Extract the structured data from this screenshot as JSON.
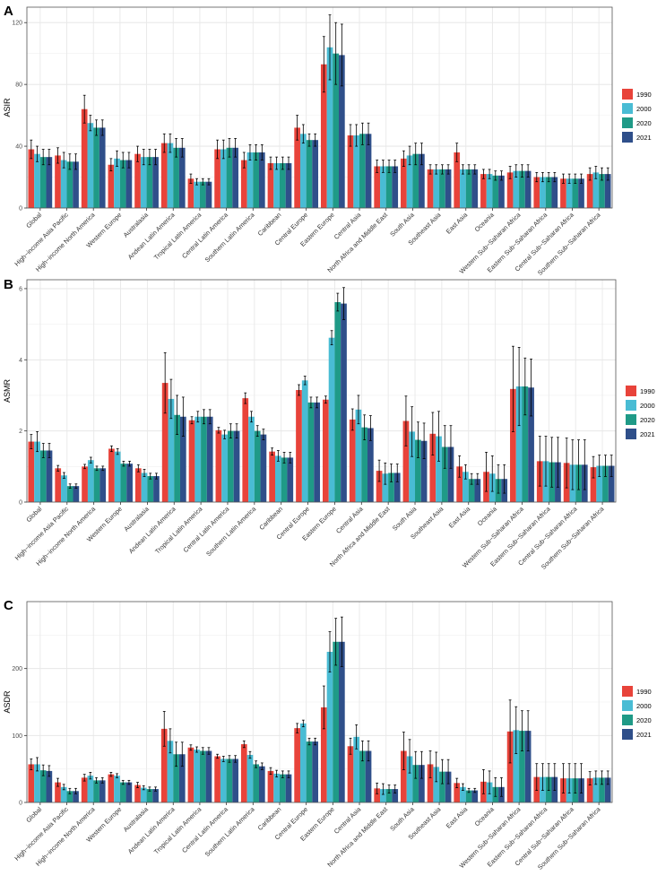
{
  "chart_data": [
    {
      "panel": "A",
      "type": "bar",
      "ylabel": "ASIR",
      "ylim": [
        0,
        130
      ],
      "yticks": [
        0,
        40,
        80,
        120
      ],
      "series_names": [
        "1990",
        "2000",
        "2020",
        "2021"
      ],
      "colors": [
        "#e8433a",
        "#49bcd4",
        "#1f9a87",
        "#2f4f8a"
      ],
      "categories": [
        "Global",
        "High−income Asia Pacific",
        "High−income North America",
        "Western Europe",
        "Australasia",
        "Andean Latin America",
        "Tropical Latin America",
        "Central Latin America",
        "Southern Latin America",
        "Caribbean",
        "Central Europe",
        "Eastern Europe",
        "Central Asia",
        "North Africa and Middle East",
        "South Asia",
        "Southeast Asia",
        "East Asia",
        "Oceania",
        "Western Sub−Saharan Africa",
        "Eastern Sub−Saharan Africa",
        "Central Sub−Saharan Africa",
        "Southern Sub−Saharan Africa"
      ],
      "values": [
        [
          38,
          35,
          33,
          33
        ],
        [
          34,
          31,
          30,
          30
        ],
        [
          64,
          55,
          52,
          52
        ],
        [
          28,
          32,
          31,
          31
        ],
        [
          35,
          33,
          33,
          33
        ],
        [
          42,
          42,
          39,
          39
        ],
        [
          19,
          17,
          17,
          17
        ],
        [
          38,
          38,
          39,
          39
        ],
        [
          31,
          36,
          36,
          36
        ],
        [
          29,
          29,
          29,
          29
        ],
        [
          52,
          48,
          44,
          44
        ],
        [
          93,
          104,
          100,
          99
        ],
        [
          47,
          47,
          48,
          48
        ],
        [
          27,
          27,
          27,
          27
        ],
        [
          32,
          34,
          35,
          35
        ],
        [
          25,
          25,
          25,
          25
        ],
        [
          36,
          25,
          25,
          25
        ],
        [
          22,
          22,
          21,
          21
        ],
        [
          23,
          24,
          24,
          24
        ],
        [
          20,
          20,
          20,
          20
        ],
        [
          19,
          19,
          19,
          19
        ],
        [
          22,
          23,
          22,
          22
        ]
      ],
      "errors": [
        [
          6,
          5,
          5,
          5
        ],
        [
          5,
          5,
          5,
          5
        ],
        [
          9,
          5,
          5,
          5
        ],
        [
          4,
          5,
          5,
          5
        ],
        [
          5,
          5,
          5,
          5
        ],
        [
          6,
          6,
          6,
          6
        ],
        [
          3,
          2,
          2,
          2
        ],
        [
          6,
          6,
          6,
          6
        ],
        [
          5,
          5,
          5,
          5
        ],
        [
          4,
          4,
          4,
          4
        ],
        [
          8,
          6,
          4,
          4
        ],
        [
          18,
          21,
          20,
          20
        ],
        [
          7,
          7,
          7,
          7
        ],
        [
          4,
          4,
          4,
          4
        ],
        [
          5,
          6,
          7,
          7
        ],
        [
          3,
          3,
          3,
          3
        ],
        [
          6,
          3,
          3,
          3
        ],
        [
          3,
          3,
          3,
          3
        ],
        [
          4,
          4,
          4,
          4
        ],
        [
          3,
          3,
          3,
          3
        ],
        [
          3,
          3,
          3,
          3
        ],
        [
          4,
          4,
          4,
          4
        ]
      ]
    },
    {
      "panel": "B",
      "type": "bar",
      "ylabel": "ASMR",
      "ylim": [
        0,
        6.25
      ],
      "yticks": [
        0,
        2,
        4,
        6
      ],
      "series_names": [
        "1990",
        "2000",
        "2020",
        "2021"
      ],
      "colors": [
        "#e8433a",
        "#49bcd4",
        "#1f9a87",
        "#2f4f8a"
      ],
      "categories": [
        "Global",
        "High−income Asia Pacific",
        "High−income North America",
        "Western Europe",
        "Australasia",
        "Andean Latin America",
        "Tropical Latin America",
        "Central Latin America",
        "Southern Latin America",
        "Caribbean",
        "Central Europe",
        "Eastern Europe",
        "Central Asia",
        "North Africa and Middle East",
        "South Asia",
        "Southeast Asia",
        "East Asia",
        "Oceania",
        "Western Sub−Saharan Africa",
        "Eastern Sub−Saharan Africa",
        "Central Sub−Saharan Africa",
        "Southern Sub−Saharan Africa"
      ],
      "values": [
        [
          1.7,
          1.7,
          1.45,
          1.45
        ],
        [
          0.95,
          0.75,
          0.45,
          0.45
        ],
        [
          1.0,
          1.18,
          0.95,
          0.95
        ],
        [
          1.5,
          1.42,
          1.08,
          1.08
        ],
        [
          0.95,
          0.82,
          0.73,
          0.73
        ],
        [
          3.35,
          2.9,
          2.45,
          2.4
        ],
        [
          2.3,
          2.4,
          2.4,
          2.4
        ],
        [
          2.02,
          1.9,
          2.0,
          2.0
        ],
        [
          2.92,
          2.4,
          2.0,
          1.9
        ],
        [
          1.42,
          1.3,
          1.25,
          1.25
        ],
        [
          3.15,
          3.42,
          2.8,
          2.8
        ],
        [
          2.88,
          4.62,
          5.62,
          5.58
        ],
        [
          2.32,
          2.6,
          2.1,
          2.08
        ],
        [
          0.88,
          0.8,
          0.82,
          0.82
        ],
        [
          2.28,
          1.98,
          1.75,
          1.72
        ],
        [
          1.92,
          1.85,
          1.55,
          1.55
        ],
        [
          1.0,
          0.85,
          0.65,
          0.65
        ],
        [
          0.85,
          0.8,
          0.65,
          0.65
        ],
        [
          3.18,
          3.25,
          3.25,
          3.22
        ],
        [
          1.15,
          1.15,
          1.12,
          1.12
        ],
        [
          1.1,
          1.05,
          1.05,
          1.05
        ],
        [
          0.98,
          1.02,
          1.02,
          1.02
        ]
      ],
      "errors": [
        [
          0.2,
          0.28,
          0.2,
          0.2
        ],
        [
          0.08,
          0.08,
          0.06,
          0.06
        ],
        [
          0.06,
          0.08,
          0.06,
          0.06
        ],
        [
          0.08,
          0.08,
          0.07,
          0.07
        ],
        [
          0.1,
          0.1,
          0.08,
          0.08
        ],
        [
          0.85,
          0.55,
          0.55,
          0.55
        ],
        [
          0.1,
          0.15,
          0.2,
          0.2
        ],
        [
          0.08,
          0.12,
          0.2,
          0.2
        ],
        [
          0.15,
          0.15,
          0.15,
          0.15
        ],
        [
          0.1,
          0.15,
          0.15,
          0.15
        ],
        [
          0.15,
          0.12,
          0.15,
          0.15
        ],
        [
          0.1,
          0.2,
          0.25,
          0.45
        ],
        [
          0.3,
          0.4,
          0.35,
          0.35
        ],
        [
          0.3,
          0.3,
          0.25,
          0.25
        ],
        [
          0.7,
          0.7,
          0.5,
          0.5
        ],
        [
          0.6,
          0.7,
          0.6,
          0.6
        ],
        [
          0.3,
          0.2,
          0.15,
          0.15
        ],
        [
          0.55,
          0.5,
          0.4,
          0.4
        ],
        [
          1.2,
          1.1,
          0.8,
          0.8
        ],
        [
          0.7,
          0.7,
          0.7,
          0.7
        ],
        [
          0.7,
          0.7,
          0.7,
          0.7
        ],
        [
          0.3,
          0.3,
          0.3,
          0.3
        ]
      ]
    },
    {
      "panel": "C",
      "type": "bar",
      "ylabel": "ASDR",
      "ylim": [
        0,
        300
      ],
      "yticks": [
        0,
        100,
        200
      ],
      "series_names": [
        "1990",
        "2000",
        "2020",
        "2021"
      ],
      "colors": [
        "#e8433a",
        "#49bcd4",
        "#1f9a87",
        "#2f4f8a"
      ],
      "categories": [
        "Global",
        "High−income Asia Pacific",
        "High−income North America",
        "Western Europe",
        "Australasia",
        "Andean Latin America",
        "Tropical Latin America",
        "Central Latin America",
        "Southern Latin America",
        "Caribbean",
        "Central Europe",
        "Eastern Europe",
        "Central Asia",
        "North Africa and Middle East",
        "South Asia",
        "Southeast Asia",
        "East Asia",
        "Oceania",
        "Western Sub−Saharan Africa",
        "Eastern Sub−Saharan Africa",
        "Central Sub−Saharan Africa",
        "Southern Sub−Saharan Africa"
      ],
      "values": [
        [
          57,
          57,
          48,
          47
        ],
        [
          30,
          23,
          17,
          17
        ],
        [
          37,
          40,
          33,
          33
        ],
        [
          42,
          40,
          30,
          30
        ],
        [
          26,
          22,
          20,
          20
        ],
        [
          110,
          92,
          72,
          72
        ],
        [
          82,
          79,
          77,
          77
        ],
        [
          69,
          65,
          65,
          65
        ],
        [
          87,
          71,
          57,
          54
        ],
        [
          47,
          43,
          42,
          42
        ],
        [
          111,
          118,
          91,
          91
        ],
        [
          142,
          225,
          240,
          240
        ],
        [
          84,
          98,
          77,
          77
        ],
        [
          21,
          20,
          20,
          20
        ],
        [
          77,
          69,
          56,
          56
        ],
        [
          57,
          53,
          46,
          46
        ],
        [
          29,
          23,
          18,
          18
        ],
        [
          31,
          30,
          23,
          23
        ],
        [
          106,
          108,
          107,
          107
        ],
        [
          38,
          38,
          38,
          38
        ],
        [
          36,
          36,
          36,
          36
        ],
        [
          36,
          37,
          37,
          37
        ]
      ],
      "errors": [
        [
          8,
          10,
          8,
          8
        ],
        [
          6,
          4,
          4,
          4
        ],
        [
          5,
          5,
          4,
          4
        ],
        [
          3,
          3,
          3,
          3
        ],
        [
          4,
          3,
          3,
          3
        ],
        [
          26,
          18,
          18,
          18
        ],
        [
          4,
          4,
          5,
          5
        ],
        [
          3,
          4,
          5,
          5
        ],
        [
          5,
          5,
          5,
          5
        ],
        [
          5,
          5,
          5,
          5
        ],
        [
          7,
          5,
          5,
          5
        ],
        [
          32,
          30,
          35,
          37
        ],
        [
          12,
          18,
          15,
          15
        ],
        [
          8,
          8,
          6,
          6
        ],
        [
          28,
          25,
          20,
          20
        ],
        [
          20,
          22,
          18,
          18
        ],
        [
          7,
          5,
          3,
          3
        ],
        [
          18,
          17,
          14,
          14
        ],
        [
          47,
          35,
          30,
          30
        ],
        [
          20,
          20,
          20,
          20
        ],
        [
          22,
          22,
          22,
          22
        ],
        [
          10,
          10,
          10,
          10
        ]
      ]
    }
  ]
}
